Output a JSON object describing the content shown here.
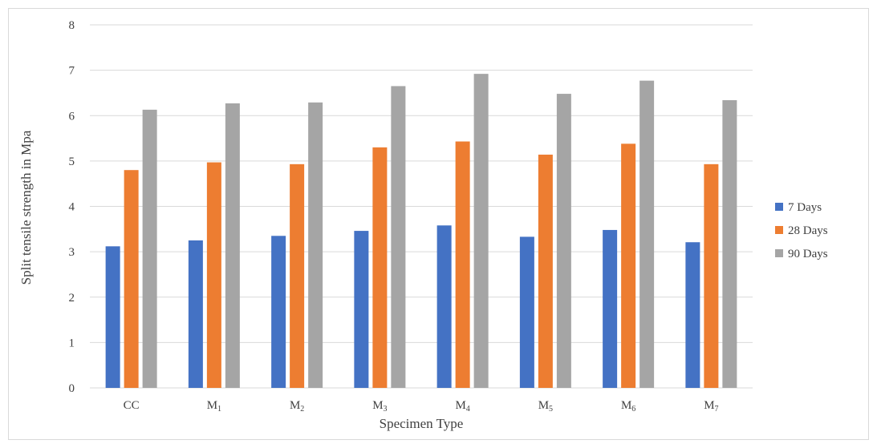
{
  "chart_data": {
    "type": "bar",
    "title": "",
    "xlabel": "Specimen Type",
    "ylabel": "Split tensile strength in Mpa",
    "ylim": [
      0,
      8
    ],
    "yticks": [
      "0",
      "1",
      "2",
      "3",
      "4",
      "5",
      "6",
      "7",
      "8"
    ],
    "grid": true,
    "legend_position": "right",
    "categories": [
      {
        "base": "CC",
        "sub": ""
      },
      {
        "base": "M",
        "sub": "1"
      },
      {
        "base": "M",
        "sub": "2"
      },
      {
        "base": "M",
        "sub": "3"
      },
      {
        "base": "M",
        "sub": "4"
      },
      {
        "base": "M",
        "sub": "5"
      },
      {
        "base": "M",
        "sub": "6"
      },
      {
        "base": "M",
        "sub": "7"
      }
    ],
    "series": [
      {
        "name": "7 Days",
        "color": "#4472C4",
        "values": [
          3.12,
          3.25,
          3.35,
          3.46,
          3.58,
          3.33,
          3.48,
          3.21
        ]
      },
      {
        "name": "28 Days",
        "color": "#ED7D31",
        "values": [
          4.8,
          4.97,
          4.93,
          5.3,
          5.43,
          5.14,
          5.38,
          4.93
        ]
      },
      {
        "name": "90 Days",
        "color": "#A5A5A5",
        "values": [
          6.13,
          6.27,
          6.29,
          6.65,
          6.92,
          6.48,
          6.77,
          6.34
        ]
      }
    ]
  }
}
